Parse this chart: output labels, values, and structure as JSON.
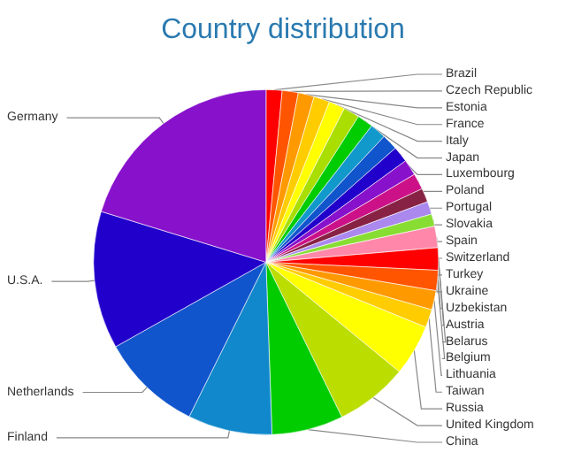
{
  "chart_data": {
    "type": "pie",
    "title": "Country distribution",
    "categories": [
      "Brazil",
      "Czech Republic",
      "Estonia",
      "France",
      "Italy",
      "Japan",
      "Luxembourg",
      "Poland",
      "Portugal",
      "Slovakia",
      "Spain",
      "Switzerland",
      "Turkey",
      "Ukraine",
      "Uzbekistan",
      "Austria",
      "Belarus",
      "Belgium",
      "Lithuania",
      "Taiwan",
      "Russia",
      "United Kingdom",
      "China",
      "Finland",
      "Netherlands",
      "U.S.A.",
      "Germany"
    ],
    "values": [
      1.5,
      1.5,
      1.5,
      1.5,
      1.5,
      1.5,
      1.5,
      1.5,
      1.5,
      1.5,
      1.5,
      1.5,
      1.3,
      1.2,
      1.15,
      2.0,
      2.1,
      1.9,
      1.8,
      1.7,
      4.8,
      6.8,
      6.7,
      7.9,
      9.5,
      12.9,
      20.25
    ],
    "colors": [
      "#ff0000",
      "#ff5500",
      "#ff9900",
      "#ffcc00",
      "#ffff00",
      "#aadd00",
      "#00cc00",
      "#1199cc",
      "#1155cc",
      "#2200cc",
      "#8811cc",
      "#cc1188",
      "#882244",
      "#aa88ee",
      "#88dd33",
      "#ff88aa",
      "#ff0000",
      "#ff5500",
      "#ff9900",
      "#ffcc00",
      "#ffff00",
      "#bbdd00",
      "#00cc00",
      "#1188cc",
      "#1155cc",
      "#2200cc",
      "#8811cc"
    ]
  }
}
